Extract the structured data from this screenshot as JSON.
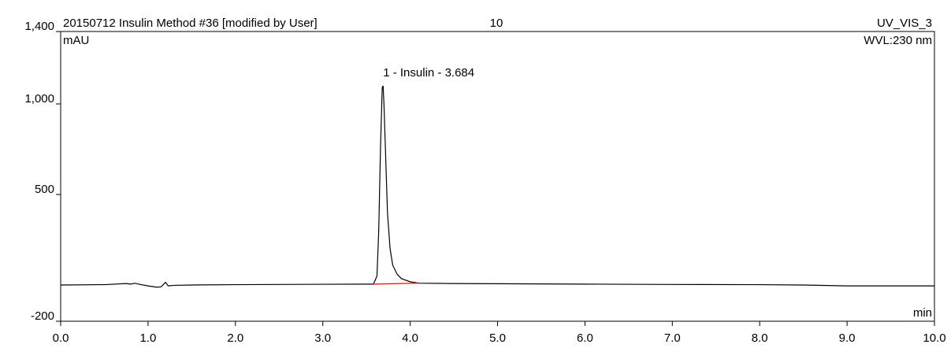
{
  "chart_data": {
    "type": "line",
    "title": "20150712 Insulin Method #36 [modified by User]",
    "injection": "10",
    "channel": "UV_VIS_3",
    "ylabel": "mAU",
    "wavelength": "WVL:230 nm",
    "xlabel": "min",
    "annotation": "1 - Insulin - 3.684",
    "series": [
      {
        "name": "UV_VIS_3",
        "color": "#000000",
        "x": [
          0,
          0.5,
          0.75,
          0.8,
          0.85,
          0.9,
          1.0,
          1.1,
          1.15,
          1.18,
          1.2,
          1.23,
          1.3,
          1.5,
          2.0,
          3.0,
          3.5,
          3.58,
          3.62,
          3.64,
          3.66,
          3.68,
          3.69,
          3.7,
          3.72,
          3.74,
          3.77,
          3.8,
          3.85,
          3.9,
          4.0,
          4.1,
          4.5,
          5.0,
          6.0,
          7.0,
          8.0,
          8.5,
          9.0,
          10.0
        ],
        "values": [
          0,
          2,
          8,
          5,
          10,
          4,
          -5,
          -12,
          -10,
          5,
          15,
          -5,
          -2,
          0,
          2,
          4,
          5,
          5,
          50,
          300,
          750,
          1090,
          1100,
          1000,
          700,
          400,
          200,
          110,
          60,
          35,
          18,
          10,
          8,
          7,
          5,
          3,
          2,
          0,
          -5,
          -5
        ]
      },
      {
        "name": "Baseline",
        "color": "#ff0000",
        "x": [
          3.58,
          4.09
        ],
        "values": [
          5,
          10
        ]
      }
    ],
    "xlim": [
      0,
      10
    ],
    "xticks": [
      {
        "value": 0,
        "label": "0.0"
      },
      {
        "value": 1,
        "label": "1.0"
      },
      {
        "value": 2,
        "label": "2.0"
      },
      {
        "value": 3,
        "label": "3.0"
      },
      {
        "value": 4,
        "label": "4.0"
      },
      {
        "value": 5,
        "label": "5.0"
      },
      {
        "value": 6,
        "label": "6.0"
      },
      {
        "value": 7,
        "label": "7.0"
      },
      {
        "value": 8,
        "label": "8.0"
      },
      {
        "value": 9,
        "label": "9.0"
      },
      {
        "value": 10,
        "label": "10.0"
      }
    ],
    "ylim": [
      -200,
      1400
    ],
    "yticks": [
      -200,
      500,
      {
        "value": 1000,
        "label": "1,000"
      },
      {
        "value": 1400,
        "label": "1,400"
      }
    ]
  }
}
